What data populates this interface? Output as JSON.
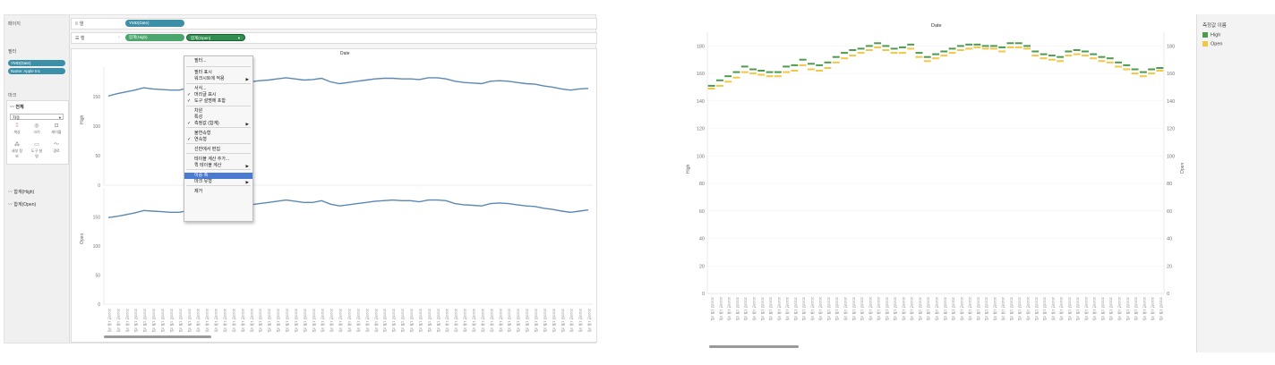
{
  "left": {
    "sidebar": {
      "pages_title": "페이지",
      "filters_title": "필터",
      "filter_pills": [
        "YMD(Date)",
        "Name: Apple Inc"
      ],
      "marks_title": "마크",
      "all_label": "전체",
      "mark_type": "자동",
      "mark_buttons": [
        "색상",
        "크기",
        "레이블",
        "세부 정보",
        "도구 설명",
        "경로"
      ],
      "measure_items": [
        "합계(High)",
        "합계(Open)"
      ]
    },
    "shelves": {
      "columns_label": "열",
      "columns_pill": "YMD(Date)",
      "rows_label": "행",
      "rows_pills": [
        "합계(High)",
        "합계(Open)"
      ]
    },
    "viz": {
      "header": "Date",
      "top_axis": {
        "label": "High",
        "ticks": [
          "150",
          "100",
          "50",
          "0"
        ]
      },
      "bottom_axis": {
        "label": "Open",
        "ticks": [
          "150",
          "100",
          "50",
          "0"
        ]
      },
      "x_tick_text": "2023년 1월 3일"
    },
    "context_menu": {
      "items": [
        {
          "label": "필터...",
          "check": false,
          "arrow": false
        },
        {
          "label": "필터 표시",
          "check": false,
          "arrow": false
        },
        {
          "label": "워크시트에 적용",
          "check": false,
          "arrow": true
        },
        {
          "label": "서식...",
          "check": false,
          "arrow": false
        },
        {
          "label": "머리글 표시",
          "check": true,
          "arrow": false
        },
        {
          "label": "도구 설명에 포함",
          "check": true,
          "arrow": false
        },
        {
          "label": "차원",
          "check": false,
          "arrow": false
        },
        {
          "label": "특성",
          "check": false,
          "arrow": false
        },
        {
          "label": "측정값 (합계)",
          "check": true,
          "arrow": true
        },
        {
          "label": "불연속형",
          "check": false,
          "arrow": false
        },
        {
          "label": "연속형",
          "check": true,
          "arrow": false
        },
        {
          "label": "선반에서 편집",
          "check": false,
          "arrow": false
        },
        {
          "label": "테이블 계산 추가...",
          "check": false,
          "arrow": false
        },
        {
          "label": "퀵 테이블 계산",
          "check": false,
          "arrow": true
        },
        {
          "label": "이중 축",
          "check": false,
          "arrow": false,
          "selected": true
        },
        {
          "label": "마크 유형",
          "check": false,
          "arrow": true
        },
        {
          "label": "제거",
          "check": false,
          "arrow": false
        }
      ]
    }
  },
  "right": {
    "header": "Date",
    "left_axis_label": "High",
    "right_axis_label": "Open",
    "x_tick_text": "2023년 1월 3일",
    "legend_title": "측정값 이름",
    "legend_items": [
      {
        "label": "High",
        "color": "#4e9a4e"
      },
      {
        "label": "Open",
        "color": "#f2c744"
      }
    ]
  },
  "chart_data": {
    "type": "line",
    "title": "Date",
    "ylim": [
      0,
      190
    ],
    "yticks": [
      0,
      20,
      40,
      60,
      80,
      100,
      120,
      140,
      160,
      180
    ],
    "series": [
      {
        "name": "High",
        "values": [
          151,
          155,
          158,
          161,
          165,
          163,
          162,
          161,
          161,
          165,
          166,
          170,
          167,
          166,
          168,
          172,
          175,
          177,
          178,
          180,
          182,
          180,
          178,
          179,
          181,
          175,
          172,
          174,
          176,
          178,
          180,
          181,
          181,
          180,
          180,
          179,
          182,
          182,
          180,
          176,
          174,
          173,
          172,
          176,
          177,
          176,
          174,
          172,
          171,
          168,
          166,
          163,
          161,
          163,
          164
        ]
      },
      {
        "name": "Open",
        "values": [
          149,
          151,
          154,
          157,
          161,
          160,
          159,
          158,
          158,
          161,
          162,
          166,
          163,
          162,
          164,
          168,
          171,
          173,
          175,
          177,
          179,
          177,
          175,
          175,
          178,
          172,
          169,
          171,
          173,
          175,
          177,
          178,
          179,
          178,
          178,
          176,
          179,
          179,
          178,
          173,
          171,
          170,
          169,
          173,
          174,
          173,
          171,
          169,
          168,
          165,
          163,
          160,
          158,
          160,
          162
        ]
      }
    ],
    "colors": {
      "High": "#4e9a4e",
      "Open": "#f2c744",
      "line": "#5b88b5"
    }
  }
}
